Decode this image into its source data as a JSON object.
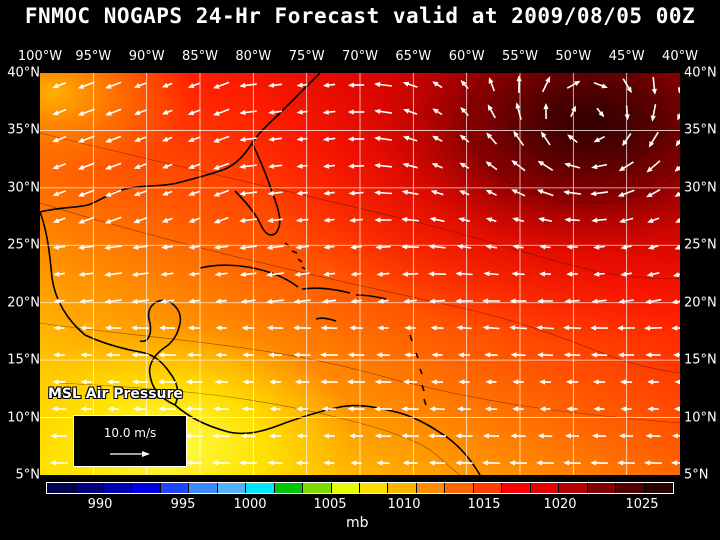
{
  "title": "FNMOC NOGAPS 24-Hr Forecast valid at 2009/08/05 00Z",
  "lon_labels": [
    "100°W",
    "95°W",
    "90°W",
    "85°W",
    "80°W",
    "75°W",
    "70°W",
    "65°W",
    "60°W",
    "55°W",
    "50°W",
    "45°W",
    "40°W"
  ],
  "lat_labels": [
    "40°N",
    "35°N",
    "30°N",
    "25°N",
    "20°N",
    "15°N",
    "10°N",
    "5°N"
  ],
  "parameter": "MSL Air Pressure",
  "reference_vector": "10.0 m/s",
  "colorbar": {
    "unit": "mb",
    "labels": [
      "990",
      "995",
      "1000",
      "1005",
      "1010",
      "1015",
      "1020",
      "1025"
    ],
    "colors": [
      "#000050",
      "#00007a",
      "#0000b4",
      "#0000e6",
      "#1e46ff",
      "#3c8cff",
      "#50b4ff",
      "#00e6ff",
      "#00c800",
      "#7ddc00",
      "#e6ff00",
      "#ffdc00",
      "#ffb400",
      "#ff8c00",
      "#ff6400",
      "#ff3c00",
      "#ff0000",
      "#e60000",
      "#b40000",
      "#820000",
      "#500000",
      "#280000"
    ]
  },
  "colors": {
    "background": "#000000",
    "pressure_low": "#ffe600",
    "pressure_mid": "#ff9a00",
    "pressure_high": "#ff1e00",
    "pressure_max": "#320000",
    "wind_vectors": "#ffffff",
    "coastline": "#000000",
    "grid": "#ffffff"
  }
}
